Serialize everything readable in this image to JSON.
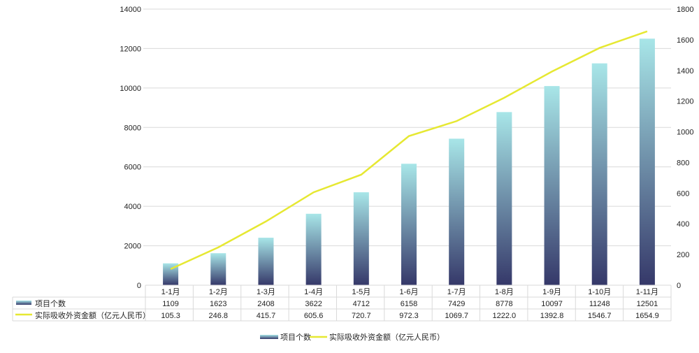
{
  "chart_data": {
    "type": "bar+line",
    "categories": [
      "1-1月",
      "1-2月",
      "1-3月",
      "1-4月",
      "1-5月",
      "1-6月",
      "1-7月",
      "1-8月",
      "1-9月",
      "1-10月",
      "1-11月"
    ],
    "series": [
      {
        "name": "项目个数",
        "type": "bar",
        "axis": "left",
        "values": [
          1109,
          1623,
          2408,
          3622,
          4712,
          6158,
          7429,
          8778,
          10097,
          11248,
          12501
        ],
        "labels": [
          "1109",
          "1623",
          "2408",
          "3622",
          "4712",
          "6158",
          "7429",
          "8778",
          "10097",
          "11248",
          "12501"
        ],
        "color_top": "#a8e6e8",
        "color_bottom": "#353869"
      },
      {
        "name": "实际吸收外资金额（亿元人民币）",
        "type": "line",
        "axis": "right",
        "values": [
          105.3,
          246.8,
          415.7,
          605.6,
          720.7,
          972.3,
          1069.7,
          1222.0,
          1392.8,
          1546.7,
          1654.9
        ],
        "labels": [
          "105.3",
          "246.8",
          "415.7",
          "605.6",
          "720.7",
          "972.3",
          "1069.7",
          "1222.0",
          "1392.8",
          "1546.7",
          "1654.9"
        ],
        "color": "#e6e832"
      }
    ],
    "y_left": {
      "range": [
        0,
        14000
      ],
      "ticks": [
        "0",
        "2000",
        "4000",
        "6000",
        "8000",
        "10000",
        "12000",
        "14000"
      ]
    },
    "y_right": {
      "range": [
        0,
        1800
      ],
      "ticks": [
        "0",
        "200",
        "400",
        "600",
        "800",
        "1000",
        "1200",
        "1400",
        "1600",
        "1800"
      ]
    },
    "grid": true,
    "data_table": true,
    "legend": "bottom"
  }
}
